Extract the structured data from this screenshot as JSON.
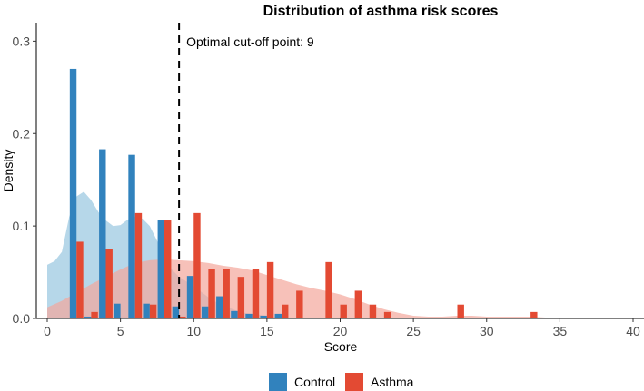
{
  "chart_data": {
    "type": "bar",
    "title": "Distribution of asthma risk scores",
    "xlabel": "Score",
    "ylabel": "Density",
    "xlim": [
      0,
      40
    ],
    "ylim": [
      0,
      0.32
    ],
    "xticks": [
      0,
      5,
      10,
      15,
      20,
      25,
      30,
      35,
      40
    ],
    "yticks": [
      0.0,
      0.1,
      0.2,
      0.3
    ],
    "ytick_labels": [
      "0.0",
      "0.1",
      "0.2",
      "0.3"
    ],
    "xtick_labels": [
      "0",
      "5",
      "10",
      "15",
      "20",
      "25",
      "30",
      "35",
      "40"
    ],
    "cutoff": {
      "x": 9,
      "label": "Optimal cut-off point: 9"
    },
    "legend": {
      "position": "bottom",
      "entries": [
        {
          "name": "Control",
          "color": "#3182bd"
        },
        {
          "name": "Asthma",
          "color": "#e34a33"
        }
      ]
    },
    "series": [
      {
        "name": "Control",
        "color": "#3182bd",
        "fill_color": "#9ecae1",
        "histogram": [
          {
            "x": 2,
            "density": 0.27
          },
          {
            "x": 3,
            "density": 0.002
          },
          {
            "x": 4,
            "density": 0.183
          },
          {
            "x": 5,
            "density": 0.016
          },
          {
            "x": 6,
            "density": 0.177
          },
          {
            "x": 7,
            "density": 0.016
          },
          {
            "x": 8,
            "density": 0.106
          },
          {
            "x": 9,
            "density": 0.013
          },
          {
            "x": 10,
            "density": 0.046
          },
          {
            "x": 11,
            "density": 0.013
          },
          {
            "x": 12,
            "density": 0.024
          },
          {
            "x": 13,
            "density": 0.008
          },
          {
            "x": 14,
            "density": 0.005
          },
          {
            "x": 15,
            "density": 0.003
          },
          {
            "x": 16,
            "density": 0.005
          }
        ],
        "density_curve": [
          {
            "x": 0,
            "y": 0.058
          },
          {
            "x": 0.5,
            "y": 0.062
          },
          {
            "x": 1,
            "y": 0.072
          },
          {
            "x": 1.5,
            "y": 0.11
          },
          {
            "x": 2,
            "y": 0.132
          },
          {
            "x": 2.5,
            "y": 0.137
          },
          {
            "x": 3,
            "y": 0.128
          },
          {
            "x": 3.5,
            "y": 0.115
          },
          {
            "x": 4,
            "y": 0.106
          },
          {
            "x": 4.5,
            "y": 0.1
          },
          {
            "x": 5,
            "y": 0.101
          },
          {
            "x": 5.5,
            "y": 0.107
          },
          {
            "x": 6,
            "y": 0.11
          },
          {
            "x": 6.5,
            "y": 0.108
          },
          {
            "x": 7,
            "y": 0.1
          },
          {
            "x": 7.5,
            "y": 0.084
          },
          {
            "x": 8,
            "y": 0.066
          },
          {
            "x": 8.5,
            "y": 0.053
          },
          {
            "x": 9,
            "y": 0.045
          },
          {
            "x": 9.5,
            "y": 0.04
          },
          {
            "x": 10,
            "y": 0.035
          },
          {
            "x": 10.5,
            "y": 0.029
          },
          {
            "x": 11,
            "y": 0.023
          },
          {
            "x": 11.5,
            "y": 0.018
          },
          {
            "x": 12,
            "y": 0.014
          },
          {
            "x": 12.5,
            "y": 0.011
          },
          {
            "x": 13,
            "y": 0.008
          },
          {
            "x": 13.5,
            "y": 0.006
          },
          {
            "x": 14,
            "y": 0.005
          },
          {
            "x": 15,
            "y": 0.003
          },
          {
            "x": 16,
            "y": 0.001
          }
        ]
      },
      {
        "name": "Asthma",
        "color": "#e34a33",
        "fill_color": "#f4a79b",
        "histogram": [
          {
            "x": 2,
            "density": 0.083
          },
          {
            "x": 3,
            "density": 0.007
          },
          {
            "x": 4,
            "density": 0.075
          },
          {
            "x": 5,
            "density": 0.001
          },
          {
            "x": 6,
            "density": 0.114
          },
          {
            "x": 7,
            "density": 0.015
          },
          {
            "x": 8,
            "density": 0.106
          },
          {
            "x": 9,
            "density": 0.002
          },
          {
            "x": 10,
            "density": 0.114
          },
          {
            "x": 11,
            "density": 0.053
          },
          {
            "x": 12,
            "density": 0.053
          },
          {
            "x": 13,
            "density": 0.045
          },
          {
            "x": 14,
            "density": 0.053
          },
          {
            "x": 15,
            "density": 0.061
          },
          {
            "x": 16,
            "density": 0.015
          },
          {
            "x": 17,
            "density": 0.03
          },
          {
            "x": 19,
            "density": 0.061
          },
          {
            "x": 20,
            "density": 0.015
          },
          {
            "x": 21,
            "density": 0.03
          },
          {
            "x": 22,
            "density": 0.015
          },
          {
            "x": 23,
            "density": 0.007
          },
          {
            "x": 28,
            "density": 0.015
          },
          {
            "x": 33,
            "density": 0.007
          }
        ],
        "density_curve": [
          {
            "x": 0,
            "y": 0.012
          },
          {
            "x": 1,
            "y": 0.019
          },
          {
            "x": 2,
            "y": 0.028
          },
          {
            "x": 3,
            "y": 0.037
          },
          {
            "x": 4,
            "y": 0.045
          },
          {
            "x": 5,
            "y": 0.053
          },
          {
            "x": 6,
            "y": 0.06
          },
          {
            "x": 7,
            "y": 0.063
          },
          {
            "x": 8,
            "y": 0.064
          },
          {
            "x": 9,
            "y": 0.063
          },
          {
            "x": 10,
            "y": 0.062
          },
          {
            "x": 11,
            "y": 0.06
          },
          {
            "x": 12,
            "y": 0.057
          },
          {
            "x": 13,
            "y": 0.055
          },
          {
            "x": 14,
            "y": 0.052
          },
          {
            "x": 15,
            "y": 0.047
          },
          {
            "x": 16,
            "y": 0.042
          },
          {
            "x": 17,
            "y": 0.037
          },
          {
            "x": 18,
            "y": 0.033
          },
          {
            "x": 19,
            "y": 0.03
          },
          {
            "x": 20,
            "y": 0.026
          },
          {
            "x": 21,
            "y": 0.021
          },
          {
            "x": 22,
            "y": 0.015
          },
          {
            "x": 23,
            "y": 0.01
          },
          {
            "x": 24,
            "y": 0.006
          },
          {
            "x": 25,
            "y": 0.003
          },
          {
            "x": 26,
            "y": 0.002
          },
          {
            "x": 27,
            "y": 0.002
          },
          {
            "x": 28,
            "y": 0.003
          },
          {
            "x": 29,
            "y": 0.003
          },
          {
            "x": 30,
            "y": 0.002
          },
          {
            "x": 31,
            "y": 0.002
          },
          {
            "x": 32,
            "y": 0.002
          },
          {
            "x": 33,
            "y": 0.002
          },
          {
            "x": 34,
            "y": 0.001
          }
        ]
      }
    ]
  }
}
